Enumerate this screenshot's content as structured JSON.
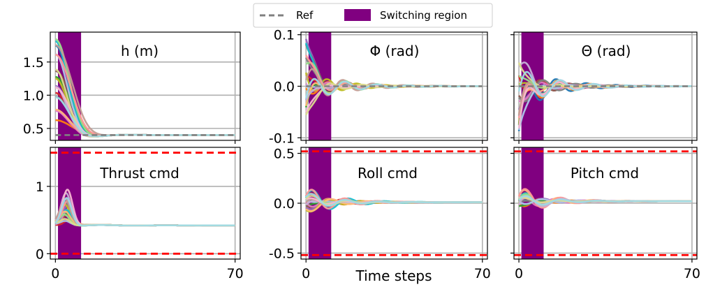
{
  "legend": {
    "ref_label": "Ref",
    "switch_label": "Switching region",
    "ref_color": "#808080",
    "switch_color": "#800080"
  },
  "x_axis_label": "Time steps",
  "trajectory_colors": [
    "#1f77b4",
    "#ff7f0e",
    "#2ca02c",
    "#d62728",
    "#9467bd",
    "#8c564b",
    "#e377c2",
    "#7f7f7f",
    "#bcbd22",
    "#17becf",
    "#aec7e8",
    "#ffbb78",
    "#98df8a",
    "#ff9896",
    "#c5b0d5",
    "#c49c94",
    "#f7b6d2",
    "#dbdb8d",
    "#9edae5"
  ],
  "bound_color": "#ff0000",
  "chart_data": [
    {
      "id": "h",
      "type": "line",
      "title": "h (m)",
      "xlim": [
        -2,
        72
      ],
      "ylim": [
        0.32,
        1.95
      ],
      "xticks": [
        0,
        70
      ],
      "xticklabels": [
        "",
        ""
      ],
      "yticks": [
        0.5,
        1.0,
        1.5
      ],
      "yticklabels": [
        "0.5",
        "1.0",
        "1.5"
      ],
      "switching_region": [
        1,
        10
      ],
      "reference": 0.4,
      "settle": 0.4,
      "initial_range": [
        0.55,
        1.85
      ],
      "oscillation_amplitude": 0.05,
      "grid": true
    },
    {
      "id": "phi",
      "type": "line",
      "title": "Φ (rad)",
      "xlim": [
        -2,
        72
      ],
      "ylim": [
        -0.105,
        0.105
      ],
      "xticks": [
        0,
        70
      ],
      "xticklabels": [
        "",
        ""
      ],
      "yticks": [
        -0.1,
        0.0,
        0.1
      ],
      "yticklabels": [
        "-0.1",
        "0.0",
        "0.1"
      ],
      "switching_region": [
        1,
        10
      ],
      "reference": 0.0,
      "settle": 0.0,
      "initial_range": [
        -0.075,
        0.095
      ],
      "oscillation_amplitude": 0.05,
      "grid": true
    },
    {
      "id": "theta",
      "type": "line",
      "title": "Θ (rad)",
      "xlim": [
        -2,
        72
      ],
      "ylim": [
        -0.105,
        0.105
      ],
      "xticks": [
        0,
        70
      ],
      "xticklabels": [
        "",
        ""
      ],
      "yticks": [
        -0.1,
        0.0,
        0.1
      ],
      "yticklabels": [
        "",
        "",
        ""
      ],
      "switching_region": [
        1,
        10
      ],
      "reference": 0.0,
      "settle": 0.0,
      "initial_range": [
        -0.09,
        0.095
      ],
      "oscillation_amplitude": 0.06,
      "grid": true
    },
    {
      "id": "thrust",
      "type": "line",
      "title": "Thrust cmd",
      "xlim": [
        -2,
        72
      ],
      "ylim": [
        -0.08,
        1.58
      ],
      "xticks": [
        0,
        70
      ],
      "xticklabels": [
        "0",
        "70"
      ],
      "yticks": [
        0,
        1
      ],
      "yticklabels": [
        "0",
        "1"
      ],
      "switching_region": [
        1,
        10
      ],
      "bounds": [
        0,
        1.5
      ],
      "settle": 0.42,
      "initial_range": [
        0.42,
        0.46
      ],
      "peak_max": 1.0,
      "grid": true
    },
    {
      "id": "roll",
      "type": "line",
      "title": "Roll cmd",
      "xlim": [
        -2,
        72
      ],
      "ylim": [
        -0.56,
        0.56
      ],
      "xticks": [
        0,
        70
      ],
      "xticklabels": [
        "0",
        "70"
      ],
      "yticks": [
        -0.5,
        0.0,
        0.5
      ],
      "yticklabels": [
        "-0.5",
        "0.0",
        "0.5"
      ],
      "switching_region": [
        1,
        10
      ],
      "bounds": [
        -0.52,
        0.52
      ],
      "settle": 0.01,
      "initial_range": [
        -0.05,
        0.05
      ],
      "peak_max": 0.24,
      "grid": true
    },
    {
      "id": "pitch",
      "type": "line",
      "title": "Pitch cmd",
      "xlim": [
        -2,
        72
      ],
      "ylim": [
        -0.56,
        0.56
      ],
      "xticks": [
        0,
        70
      ],
      "xticklabels": [
        "0",
        "70"
      ],
      "yticks": [
        -0.5,
        0.0,
        0.5
      ],
      "yticklabels": [
        "",
        "",
        ""
      ],
      "switching_region": [
        1,
        10
      ],
      "bounds": [
        -0.52,
        0.52
      ],
      "settle": 0.02,
      "initial_range": [
        -0.05,
        0.06
      ],
      "peak_max": 0.27,
      "grid": true
    }
  ]
}
